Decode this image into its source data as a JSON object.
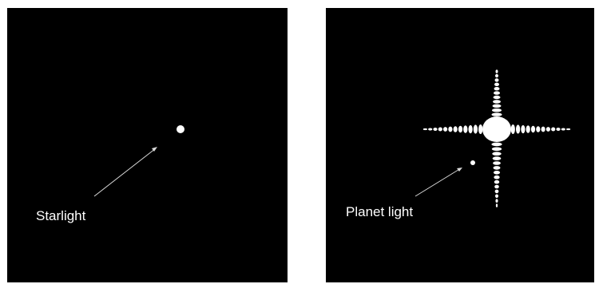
{
  "panels": {
    "left": {
      "label": "Starlight"
    },
    "right": {
      "label": "Planet light"
    }
  },
  "colors": {
    "background": "#000000",
    "light": "#ffffff",
    "arrow": "#d9d9d9"
  }
}
